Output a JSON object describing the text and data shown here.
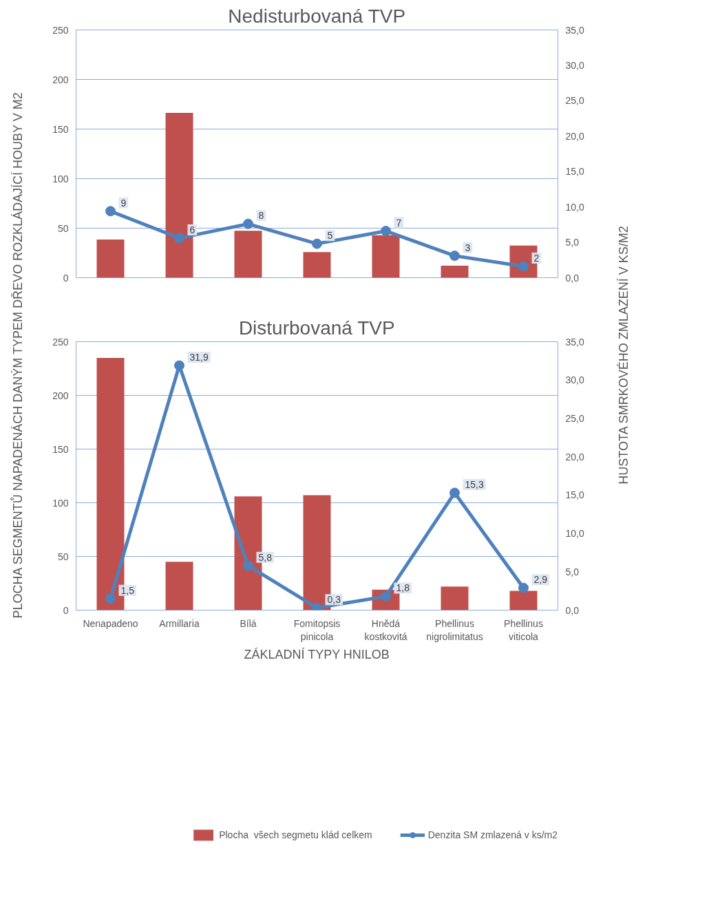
{
  "chart_data": [
    {
      "type": "bar",
      "title": "Nedisturbovaná TVP",
      "ylabel": "PLOCHA SEGMENTŮ NAPADENÁCH DANÝM TYPEM DŘEVO ROZKLÁDAJÍCÍ HOUBY V M2",
      "y2label": "HUSTOTA SMRKOVÉHO ZMLAZENÍ V KS/M2",
      "categories": [
        null,
        null,
        null,
        null,
        null,
        null,
        null
      ],
      "series": [
        {
          "color": "#c0504d",
          "values": [
            38.5,
            166.4,
            47.4,
            25.9,
            42.8,
            12.1,
            32.5
          ]
        },
        {
          "type": "line",
          "axis": "y2",
          "color": "#4f81bd",
          "values": [
            9.4,
            5.6,
            7.6,
            4.8,
            6.6,
            3.1,
            1.6
          ],
          "value_labels": [
            "9",
            "6",
            "8",
            "5",
            "7",
            "3",
            "2"
          ]
        }
      ],
      "ylim": [
        0,
        250
      ],
      "yticks": [
        0,
        50,
        100,
        150,
        200,
        250
      ],
      "y2lim": [
        0,
        35
      ],
      "y2ticks": [
        {
          "value": 0,
          "label": "0,0"
        },
        {
          "value": 5,
          "label": "5,0"
        },
        {
          "value": 10,
          "label": "10,0"
        },
        {
          "value": 15,
          "label": "15,0"
        },
        {
          "value": 20,
          "label": "20,0"
        },
        {
          "value": 25,
          "label": "25,0"
        },
        {
          "value": 30,
          "label": "30,0"
        },
        {
          "value": 35,
          "label": "35,0"
        }
      ],
      "grid": "y",
      "marker": "circle",
      "tick_labels": "y"
    },
    {
      "type": "bar",
      "title": "Disturbovaná TVP",
      "xlabel": "ZÁKLADNÍ TYPY HNILOB",
      "categories": [
        "Nenapadeno",
        "Armillaria",
        "Bílá",
        "Fomitopsis pinicola",
        "Hnědá kostkovitá",
        "Phellinus nigrolimitatus",
        "Phellinus viticola"
      ],
      "series": [
        {
          "name": "Plocha  všech segmetu klád celkem",
          "color": "#c0504d",
          "values": [
            235,
            45,
            106,
            107,
            19,
            22,
            18
          ]
        },
        {
          "type": "line",
          "axis": "y2",
          "name": "Denzita SM zmlazená v ks/m2",
          "color": "#4f81bd",
          "values": [
            1.5,
            31.9,
            5.8,
            0.3,
            1.8,
            15.3,
            2.9
          ],
          "value_labels": [
            "1,5",
            "31,9",
            "5,8",
            "0,3",
            "1,8",
            "15,3",
            "2,9"
          ]
        }
      ],
      "ylim": [
        0,
        250
      ],
      "yticks": [
        0,
        50,
        100,
        150,
        200,
        250
      ],
      "y2lim": [
        0,
        35
      ],
      "y2ticks": [
        {
          "value": 0,
          "label": "0,0"
        },
        {
          "value": 5,
          "label": "5,0"
        },
        {
          "value": 10,
          "label": "10,0"
        },
        {
          "value": 15,
          "label": "15,0"
        },
        {
          "value": 20,
          "label": "20,0"
        },
        {
          "value": 25,
          "label": "25,0"
        },
        {
          "value": 30,
          "label": "30,0"
        },
        {
          "value": 35,
          "label": "35,0"
        }
      ],
      "grid": "y",
      "marker": "circle",
      "legend": "bottom"
    }
  ]
}
